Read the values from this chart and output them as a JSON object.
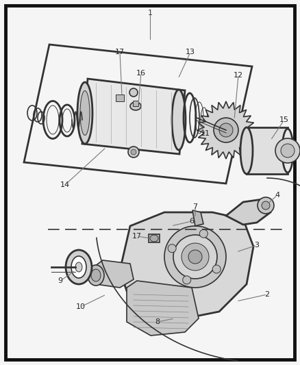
{
  "bg_color": "#f5f5f5",
  "border_color": "#111111",
  "line_color": "#333333",
  "label_color": "#222222",
  "fig_width": 4.38,
  "fig_height": 5.33,
  "dpi": 100
}
